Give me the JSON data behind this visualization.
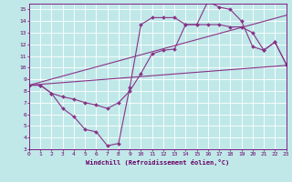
{
  "xlabel": "Windchill (Refroidissement éolien,°C)",
  "xlim": [
    0,
    23
  ],
  "ylim": [
    3,
    15.5
  ],
  "xticks": [
    0,
    1,
    2,
    3,
    4,
    5,
    6,
    7,
    8,
    9,
    10,
    11,
    12,
    13,
    14,
    15,
    16,
    17,
    18,
    19,
    20,
    21,
    22,
    23
  ],
  "yticks": [
    3,
    4,
    5,
    6,
    7,
    8,
    9,
    10,
    11,
    12,
    13,
    14,
    15
  ],
  "bg_color": "#c0e8e8",
  "line_color": "#883388",
  "grid_color": "#ffffff",
  "line1_x": [
    0,
    1,
    2,
    3,
    4,
    5,
    6,
    7,
    8,
    9,
    10,
    11,
    12,
    13,
    14,
    15,
    16,
    17,
    18,
    19,
    20,
    21,
    22,
    23
  ],
  "line1_y": [
    8.5,
    8.5,
    7.8,
    6.5,
    5.8,
    4.7,
    4.5,
    3.3,
    3.5,
    8.3,
    13.7,
    14.3,
    14.3,
    14.3,
    13.7,
    13.7,
    15.7,
    15.2,
    15.0,
    14.0,
    11.8,
    11.5,
    12.2,
    10.3
  ],
  "line2_x": [
    0,
    23
  ],
  "line2_y": [
    8.5,
    10.2
  ],
  "line3_x": [
    0,
    23
  ],
  "line3_y": [
    8.5,
    14.5
  ],
  "line4_x": [
    0,
    1,
    2,
    3,
    4,
    5,
    6,
    7,
    8,
    9,
    10,
    11,
    12,
    13,
    14,
    15,
    16,
    17,
    18,
    19,
    20,
    21,
    22,
    23
  ],
  "line4_y": [
    8.5,
    8.5,
    7.8,
    7.5,
    7.3,
    7.0,
    6.8,
    6.5,
    7.0,
    8.0,
    9.5,
    11.2,
    11.5,
    11.6,
    13.7,
    13.7,
    13.7,
    13.7,
    13.5,
    13.5,
    13.0,
    11.5,
    12.2,
    10.3
  ]
}
